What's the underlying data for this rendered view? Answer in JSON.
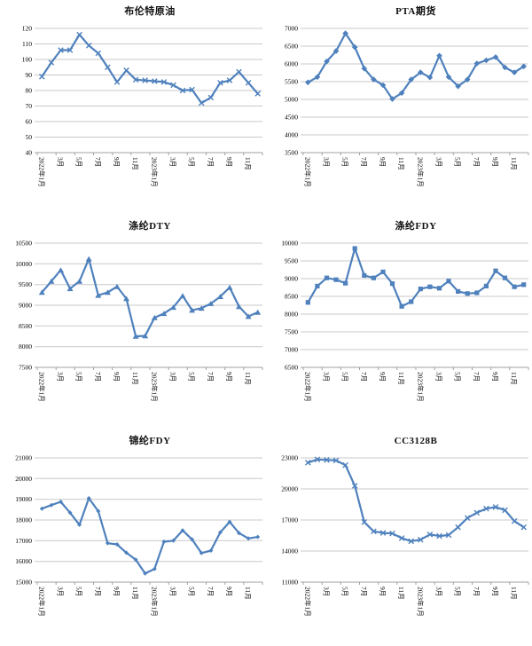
{
  "style": {
    "line_color": "#4F81BD",
    "grid_color": "#C9C9C9",
    "axis_color": "#A0A0A0",
    "text_color": "#000000",
    "background": "#FFFFFF"
  },
  "chart_data": [
    {
      "type": "line",
      "title": "布伦特原油",
      "marker": "x",
      "legend_position": "none",
      "grid": true,
      "categories": [
        "2022年1月",
        "3月",
        "5月",
        "7月",
        "9月",
        "11月",
        "2023年1月",
        "3月",
        "5月",
        "7月",
        "9月",
        "11月"
      ],
      "values": [
        89,
        98,
        106,
        106,
        116,
        109,
        104,
        95,
        85.5,
        93,
        87,
        86.5,
        86,
        85.5,
        83.5,
        80,
        80.5,
        72,
        75.5,
        85,
        86.5,
        92,
        85,
        78
      ],
      "ylim": [
        40,
        120
      ],
      "ytick_step": 10,
      "xlabel": "",
      "ylabel": ""
    },
    {
      "type": "line",
      "title": "PTA期货",
      "marker": "diamond",
      "legend_position": "none",
      "grid": true,
      "categories": [
        "2022年1月",
        "3月",
        "5月",
        "7月",
        "9月",
        "11月",
        "2023年1月",
        "3月",
        "5月",
        "7月",
        "9月",
        "11月"
      ],
      "values": [
        5480,
        5630,
        6070,
        6360,
        6860,
        6470,
        5870,
        5560,
        5400,
        5010,
        5180,
        5560,
        5760,
        5620,
        6230,
        5630,
        5370,
        5560,
        6010,
        6100,
        6190,
        5900,
        5760,
        5930
      ],
      "ylim": [
        3500,
        7000
      ],
      "ytick_step": 500,
      "xlabel": "",
      "ylabel": ""
    },
    {
      "type": "line",
      "title": "涤纶DTY",
      "marker": "triangle",
      "legend_position": "none",
      "grid": true,
      "categories": [
        "2022年1月",
        "3月",
        "5月",
        "7月",
        "9月",
        "11月",
        "2023年1月",
        "3月",
        "5月",
        "7月",
        "9月",
        "11月"
      ],
      "values": [
        9310,
        9580,
        9850,
        9400,
        9580,
        10120,
        9240,
        9310,
        9450,
        9160,
        8250,
        8260,
        8700,
        8800,
        8950,
        9230,
        8880,
        8930,
        9040,
        9210,
        9430,
        8970,
        8730,
        8830
      ],
      "ylim": [
        7500,
        10500
      ],
      "ytick_step": 500,
      "xlabel": "",
      "ylabel": ""
    },
    {
      "type": "line",
      "title": "涤纶FDY",
      "marker": "square",
      "legend_position": "none",
      "grid": true,
      "categories": [
        "2022年1月",
        "3月",
        "5月",
        "7月",
        "9月",
        "11月",
        "2023年1月",
        "3月",
        "5月",
        "7月",
        "9月",
        "11月"
      ],
      "values": [
        8330,
        8790,
        9020,
        8970,
        8870,
        9850,
        9090,
        9020,
        9190,
        8860,
        8220,
        8350,
        8710,
        8770,
        8730,
        8930,
        8640,
        8580,
        8600,
        8790,
        9220,
        9020,
        8770,
        8830
      ],
      "ylim": [
        6500,
        10000
      ],
      "ytick_step": 500,
      "xlabel": "",
      "ylabel": ""
    },
    {
      "type": "line",
      "title": "锦纶FDY",
      "marker": "diamond-small",
      "legend_position": "none",
      "grid": true,
      "categories": [
        "2022年1月",
        "3月",
        "5月",
        "7月",
        "9月",
        "11月",
        "2023年1月",
        "3月",
        "5月",
        "7月",
        "9月",
        "11月"
      ],
      "values": [
        18550,
        18720,
        18880,
        18350,
        17770,
        19050,
        18430,
        16880,
        16820,
        16420,
        16080,
        15420,
        15640,
        16950,
        17000,
        17500,
        17060,
        16400,
        16520,
        17400,
        17910,
        17370,
        17110,
        17180
      ],
      "ylim": [
        15000,
        21000
      ],
      "ytick_step": 1000,
      "xlabel": "",
      "ylabel": ""
    },
    {
      "type": "line",
      "title": "CC3128B",
      "marker": "x",
      "legend_position": "none",
      "grid": true,
      "categories": [
        "2022年1月",
        "3月",
        "5月",
        "7月",
        "9月",
        "11月",
        "2023年1月",
        "3月",
        "5月",
        "7月",
        "9月",
        "11月"
      ],
      "values": [
        22550,
        22850,
        22800,
        22750,
        22300,
        20300,
        16800,
        15900,
        15750,
        15700,
        15250,
        14950,
        15100,
        15600,
        15450,
        15550,
        16300,
        17200,
        17700,
        18100,
        18250,
        17950,
        16900,
        16300
      ],
      "ylim": [
        11000,
        23000
      ],
      "ytick_step": 3000,
      "xlabel": "",
      "ylabel": ""
    }
  ]
}
